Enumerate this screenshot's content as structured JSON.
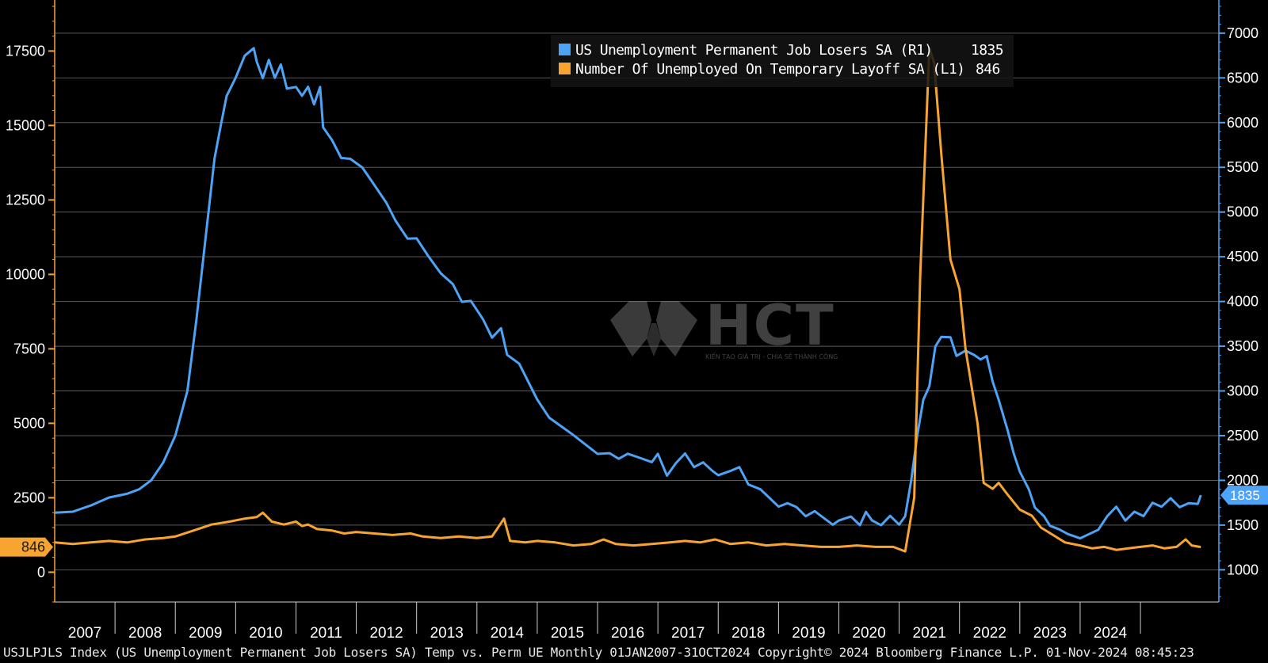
{
  "chart_data": {
    "type": "line",
    "title": "",
    "xlabel": "",
    "ylabel": "",
    "x_years": [
      "2007",
      "2008",
      "2009",
      "2010",
      "2011",
      "2012",
      "2013",
      "2014",
      "2015",
      "2016",
      "2017",
      "2018",
      "2019",
      "2020",
      "2021",
      "2022",
      "2023",
      "2024"
    ],
    "left_axis": {
      "ticks": [
        0,
        2500,
        5000,
        7500,
        10000,
        12500,
        15000,
        17500
      ],
      "tick_labels": [
        "0",
        "2500",
        "5000",
        "7500",
        "10000",
        "12500",
        "15000",
        "17500"
      ],
      "ylim": [
        -1000,
        19000
      ]
    },
    "right_axis": {
      "ticks": [
        1000,
        1500,
        2000,
        2500,
        3000,
        3500,
        4000,
        4500,
        5000,
        5500,
        6000,
        6500,
        7000
      ],
      "tick_labels": [
        "1000",
        "1500",
        "2000",
        "2500",
        "3000",
        "3500",
        "4000",
        "4500",
        "5000",
        "5500",
        "6000",
        "6500",
        "7000"
      ],
      "ylim": [
        640,
        7300
      ]
    },
    "series": [
      {
        "name": "US Unemployment Permanent Job Losers SA (R1)",
        "axis": "right",
        "color": "#4da3f5",
        "last_value": "1835",
        "points": [
          [
            2007.0,
            1638
          ],
          [
            2007.3,
            1650
          ],
          [
            2007.6,
            1720
          ],
          [
            2007.9,
            1808
          ],
          [
            2008.2,
            1850
          ],
          [
            2008.4,
            1900
          ],
          [
            2008.6,
            2001
          ],
          [
            2008.8,
            2200
          ],
          [
            2009.0,
            2499
          ],
          [
            2009.2,
            3002
          ],
          [
            2009.35,
            3801
          ],
          [
            2009.5,
            4702
          ],
          [
            2009.65,
            5600
          ],
          [
            2009.75,
            5955
          ],
          [
            2009.85,
            6297
          ],
          [
            2010.0,
            6500
          ],
          [
            2010.15,
            6748
          ],
          [
            2010.3,
            6832
          ],
          [
            2010.35,
            6680
          ],
          [
            2010.45,
            6497
          ],
          [
            2010.55,
            6700
          ],
          [
            2010.65,
            6500
          ],
          [
            2010.75,
            6650
          ],
          [
            2010.85,
            6380
          ],
          [
            2011.0,
            6398
          ],
          [
            2011.1,
            6300
          ],
          [
            2011.2,
            6400
          ],
          [
            2011.3,
            6204
          ],
          [
            2011.4,
            6398
          ],
          [
            2011.45,
            5948
          ],
          [
            2011.6,
            5802
          ],
          [
            2011.75,
            5605
          ],
          [
            2011.9,
            5595
          ],
          [
            2012.1,
            5498
          ],
          [
            2012.3,
            5302
          ],
          [
            2012.5,
            5103
          ],
          [
            2012.65,
            4905
          ],
          [
            2012.85,
            4702
          ],
          [
            2013.0,
            4706
          ],
          [
            2013.2,
            4501
          ],
          [
            2013.4,
            4315
          ],
          [
            2013.6,
            4195
          ],
          [
            2013.75,
            3997
          ],
          [
            2013.9,
            4006
          ],
          [
            2014.1,
            3803
          ],
          [
            2014.25,
            3595
          ],
          [
            2014.4,
            3702
          ],
          [
            2014.5,
            3404
          ],
          [
            2014.7,
            3305
          ],
          [
            2014.85,
            3104
          ],
          [
            2015.0,
            2904
          ],
          [
            2015.2,
            2700
          ],
          [
            2015.4,
            2603
          ],
          [
            2015.6,
            2506
          ],
          [
            2015.8,
            2401
          ],
          [
            2016.0,
            2296
          ],
          [
            2016.2,
            2304
          ],
          [
            2016.35,
            2241
          ],
          [
            2016.5,
            2298
          ],
          [
            2016.7,
            2252
          ],
          [
            2016.9,
            2204
          ],
          [
            2017.0,
            2297
          ],
          [
            2017.15,
            2053
          ],
          [
            2017.3,
            2194
          ],
          [
            2017.45,
            2301
          ],
          [
            2017.6,
            2148
          ],
          [
            2017.75,
            2201
          ],
          [
            2017.9,
            2108
          ],
          [
            2018.0,
            2058
          ],
          [
            2018.2,
            2105
          ],
          [
            2018.35,
            2148
          ],
          [
            2018.5,
            1954
          ],
          [
            2018.7,
            1900
          ],
          [
            2018.85,
            1804
          ],
          [
            2019.0,
            1706
          ],
          [
            2019.15,
            1745
          ],
          [
            2019.3,
            1700
          ],
          [
            2019.45,
            1599
          ],
          [
            2019.6,
            1656
          ],
          [
            2019.8,
            1554
          ],
          [
            2019.9,
            1504
          ],
          [
            2020.0,
            1551
          ],
          [
            2020.2,
            1596
          ],
          [
            2020.35,
            1499
          ],
          [
            2020.45,
            1648
          ],
          [
            2020.55,
            1552
          ],
          [
            2020.7,
            1498
          ],
          [
            2020.85,
            1604
          ],
          [
            2021.0,
            1505
          ],
          [
            2021.1,
            1600
          ],
          [
            2021.2,
            2000
          ],
          [
            2021.3,
            2500
          ],
          [
            2021.4,
            2899
          ],
          [
            2021.5,
            3053
          ],
          [
            2021.6,
            3499
          ],
          [
            2021.7,
            3605
          ],
          [
            2021.85,
            3600
          ],
          [
            2021.95,
            3392
          ],
          [
            2022.1,
            3450
          ],
          [
            2022.25,
            3400
          ],
          [
            2022.35,
            3352
          ],
          [
            2022.45,
            3390
          ],
          [
            2022.55,
            3103
          ],
          [
            2022.65,
            2900
          ],
          [
            2022.8,
            2556
          ],
          [
            2022.9,
            2300
          ],
          [
            2023.0,
            2098
          ],
          [
            2023.15,
            1900
          ],
          [
            2023.25,
            1696
          ],
          [
            2023.4,
            1600
          ],
          [
            2023.5,
            1492
          ],
          [
            2023.65,
            1453
          ],
          [
            2023.8,
            1399
          ],
          [
            2024.0,
            1352
          ],
          [
            2024.15,
            1400
          ],
          [
            2024.3,
            1448
          ],
          [
            2024.45,
            1600
          ],
          [
            2024.6,
            1705
          ],
          [
            2024.75,
            1550
          ],
          [
            2024.9,
            1650
          ],
          [
            2025.05,
            1600
          ],
          [
            2025.2,
            1750
          ],
          [
            2025.35,
            1705
          ],
          [
            2025.5,
            1800
          ],
          [
            2025.65,
            1700
          ],
          [
            2025.8,
            1745
          ],
          [
            2025.95,
            1737
          ],
          [
            2026.0,
            1835
          ]
        ]
      },
      {
        "name": "Number Of Unemployed On Temporary Layoff SA (L1)",
        "axis": "left",
        "color": "#f7a430",
        "last_value": "846",
        "points": [
          [
            2007.0,
            1000
          ],
          [
            2007.3,
            950
          ],
          [
            2007.6,
            1000
          ],
          [
            2007.9,
            1050
          ],
          [
            2008.2,
            1000
          ],
          [
            2008.5,
            1100
          ],
          [
            2008.8,
            1150
          ],
          [
            2009.0,
            1200
          ],
          [
            2009.3,
            1400
          ],
          [
            2009.6,
            1600
          ],
          [
            2009.9,
            1700
          ],
          [
            2010.15,
            1800
          ],
          [
            2010.35,
            1850
          ],
          [
            2010.45,
            2000
          ],
          [
            2010.6,
            1700
          ],
          [
            2010.8,
            1600
          ],
          [
            2011.0,
            1700
          ],
          [
            2011.1,
            1550
          ],
          [
            2011.2,
            1600
          ],
          [
            2011.35,
            1450
          ],
          [
            2011.6,
            1400
          ],
          [
            2011.8,
            1300
          ],
          [
            2012.0,
            1350
          ],
          [
            2012.3,
            1300
          ],
          [
            2012.6,
            1250
          ],
          [
            2012.9,
            1300
          ],
          [
            2013.1,
            1200
          ],
          [
            2013.4,
            1150
          ],
          [
            2013.7,
            1200
          ],
          [
            2014.0,
            1150
          ],
          [
            2014.25,
            1200
          ],
          [
            2014.45,
            1800
          ],
          [
            2014.55,
            1050
          ],
          [
            2014.8,
            1000
          ],
          [
            2015.0,
            1050
          ],
          [
            2015.3,
            1000
          ],
          [
            2015.6,
            900
          ],
          [
            2015.9,
            950
          ],
          [
            2016.1,
            1100
          ],
          [
            2016.3,
            950
          ],
          [
            2016.6,
            900
          ],
          [
            2016.9,
            950
          ],
          [
            2017.2,
            1000
          ],
          [
            2017.45,
            1050
          ],
          [
            2017.7,
            1000
          ],
          [
            2017.95,
            1100
          ],
          [
            2018.2,
            950
          ],
          [
            2018.5,
            1000
          ],
          [
            2018.8,
            900
          ],
          [
            2019.1,
            950
          ],
          [
            2019.4,
            900
          ],
          [
            2019.7,
            850
          ],
          [
            2020.0,
            850
          ],
          [
            2020.3,
            900
          ],
          [
            2020.6,
            850
          ],
          [
            2020.9,
            850
          ],
          [
            2021.1,
            700
          ],
          [
            2021.25,
            2500
          ],
          [
            2021.35,
            10000
          ],
          [
            2021.5,
            17600
          ],
          [
            2021.58,
            17100
          ],
          [
            2021.7,
            14000
          ],
          [
            2021.85,
            10500
          ],
          [
            2022.0,
            9500
          ],
          [
            2022.1,
            7500
          ],
          [
            2022.3,
            5000
          ],
          [
            2022.4,
            3000
          ],
          [
            2022.55,
            2800
          ],
          [
            2022.65,
            3000
          ],
          [
            2022.8,
            2600
          ],
          [
            2023.0,
            2100
          ],
          [
            2023.2,
            1900
          ],
          [
            2023.35,
            1500
          ],
          [
            2023.55,
            1250
          ],
          [
            2023.75,
            1000
          ],
          [
            2024.0,
            900
          ],
          [
            2024.2,
            800
          ],
          [
            2024.4,
            850
          ],
          [
            2024.6,
            750
          ],
          [
            2024.8,
            800
          ],
          [
            2025.0,
            850
          ],
          [
            2025.2,
            900
          ],
          [
            2025.4,
            800
          ],
          [
            2025.6,
            850
          ],
          [
            2025.75,
            1100
          ],
          [
            2025.85,
            900
          ],
          [
            2026.0,
            846
          ]
        ]
      }
    ],
    "legend_placement": "top-center"
  },
  "legend": {
    "entries": [
      {
        "label": "US Unemployment Permanent Job Losers SA (R1)",
        "value": "1835",
        "color": "#4da3f5"
      },
      {
        "label": "Number Of Unemployed On Temporary Layoff SA  (L1)",
        "value": "846",
        "color": "#f7a430"
      }
    ]
  },
  "watermark": {
    "text": "HCT",
    "subtext": "KIẾN TẠO GIÁ TRỊ - CHIA SẺ THÀNH CÔNG"
  },
  "footer": {
    "text": "USJLPJLS Index (US Unemployment Permanent Job Losers SA) Temp vs. Perm UE  Monthly 01JAN2007-31OCT2024 Copyright© 2024 Bloomberg Finance L.P. 01-Nov-2024 08:45:23"
  }
}
